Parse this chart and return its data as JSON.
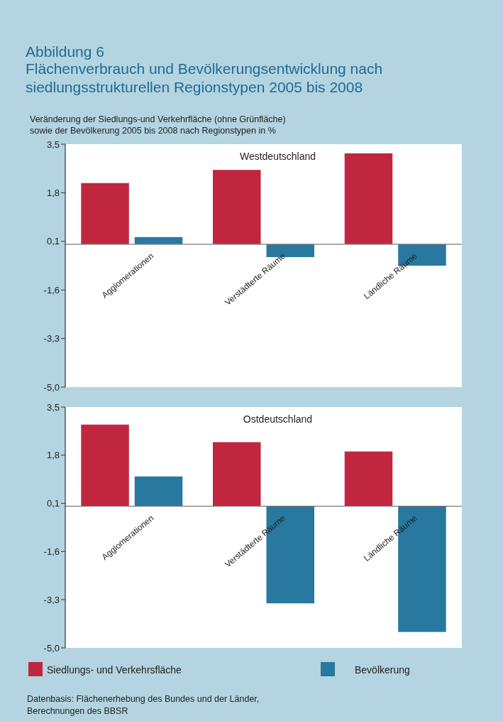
{
  "chart_data": [
    {
      "type": "bar",
      "title": "Westdeutschland",
      "ylabel": "Veränderung der Siedlungs-und Verkehrfläche (ohne Grünfläche)\nsowie der Bevölkerung 2005 bis 2008 nach Regionstypen in %",
      "annotations": [
        "Abbildung 6",
        "Flächenverbrauch und Bevölkerungsentwicklung nach\nsiedlungsstrukturellen Regionstypen 2005 bis 2008"
      ],
      "categories": [
        "Agglomerationen",
        "Verstädterte Räume",
        "Ländliche Räume"
      ],
      "series": [
        {
          "color": "#c0273f",
          "values": [
            2.14,
            2.6,
            3.18
          ]
        },
        {
          "color": "#2878a0",
          "values": [
            0.25,
            -0.45,
            -0.75
          ]
        }
      ],
      "ylim": [
        -5,
        3.5
      ],
      "yticks": [
        {
          "value": 3.5,
          "label": "3,5"
        },
        {
          "value": 1.8,
          "label": "1,8"
        },
        {
          "value": 0.1,
          "label": "0,1"
        },
        {
          "value": -1.6,
          "label": "-1,6"
        },
        {
          "value": -3.3,
          "label": "-3,3"
        },
        {
          "value": -5,
          "label": "-5,0"
        }
      ]
    },
    {
      "type": "bar",
      "title": "Ostdeutschland",
      "annotations": [
        "Datenbasis: Flächenerhebung des Bundes und der Länder,\nBerechnungen des BBSR"
      ],
      "categories": [
        "Agglomerationen",
        "Verstädterte Räume",
        "Ländliche Räume"
      ],
      "series": [
        {
          "name": "Siedlungs- und Verkehrsfläche",
          "color": "#c0273f",
          "values": [
            2.88,
            2.26,
            1.93
          ]
        },
        {
          "name": "Bevölkerung",
          "color": "#2878a0",
          "values": [
            1.05,
            -3.43,
            -4.44
          ]
        }
      ],
      "legend": "bottom",
      "ylim": [
        -5,
        3.5
      ],
      "yticks": [
        {
          "value": 3.5,
          "label": "3,5"
        },
        {
          "value": 1.8,
          "label": "1,8"
        },
        {
          "value": 0.1,
          "label": "0,1"
        },
        {
          "value": -1.6,
          "label": "-1,6"
        },
        {
          "value": -3.3,
          "label": "-3,3"
        },
        {
          "value": -5,
          "label": "-5,0"
        }
      ]
    }
  ]
}
